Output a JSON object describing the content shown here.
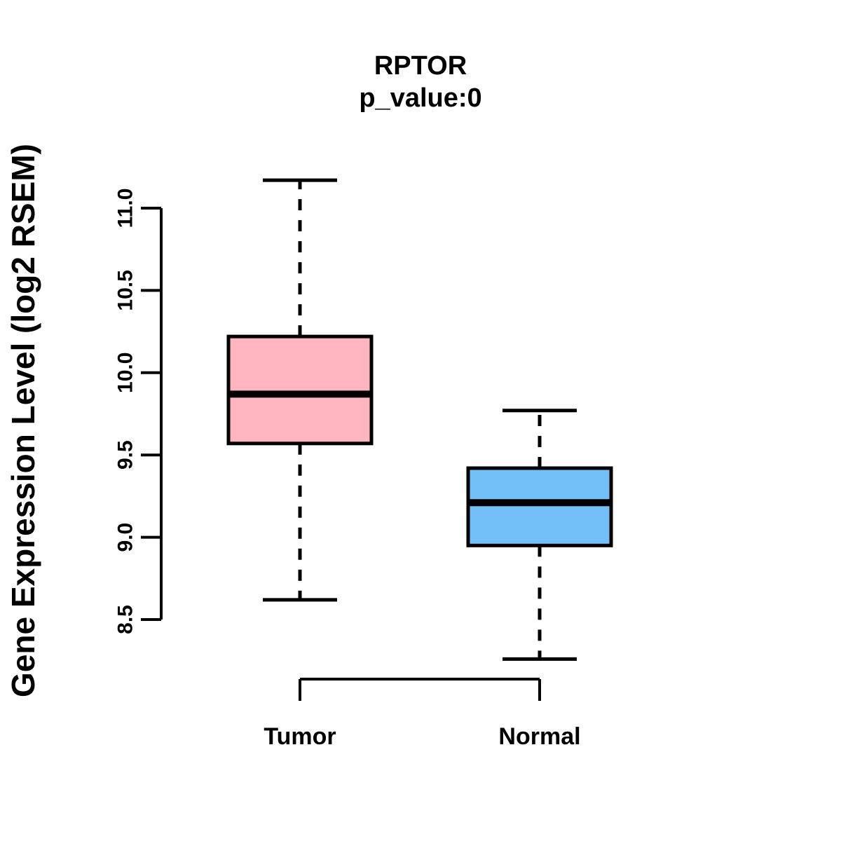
{
  "figure": {
    "background": "#FFFFFF",
    "text_color": "#000000"
  },
  "chart_data": {
    "type": "boxplot",
    "title": "RPTOR",
    "subtitle": "p_value:0",
    "ylabel": "Gene Expression Level (log2 RSEM)",
    "xlabel": "",
    "categories": [
      "Tumor",
      "Normal"
    ],
    "y_axis": {
      "min": 8.5,
      "max": 11.0,
      "tick_labels": [
        "8.5",
        "9.0",
        "9.5",
        "10.0",
        "10.5",
        "11.0"
      ],
      "tick_values": [
        8.5,
        9.0,
        9.5,
        10.0,
        10.5,
        11.0
      ]
    },
    "series": [
      {
        "name": "Tumor",
        "fill": "#FFB6C1",
        "stroke": "#000000",
        "lower_whisker": 8.62,
        "q1": 9.57,
        "median": 9.87,
        "q3": 10.22,
        "upper_whisker": 11.17
      },
      {
        "name": "Normal",
        "fill": "#74BFF7",
        "stroke": "#000000",
        "lower_whisker": 8.26,
        "q1": 8.95,
        "median": 9.21,
        "q3": 9.42,
        "upper_whisker": 9.77
      }
    ],
    "outliers": [],
    "grid": false,
    "legend": null,
    "whisker_style": "dashed"
  }
}
